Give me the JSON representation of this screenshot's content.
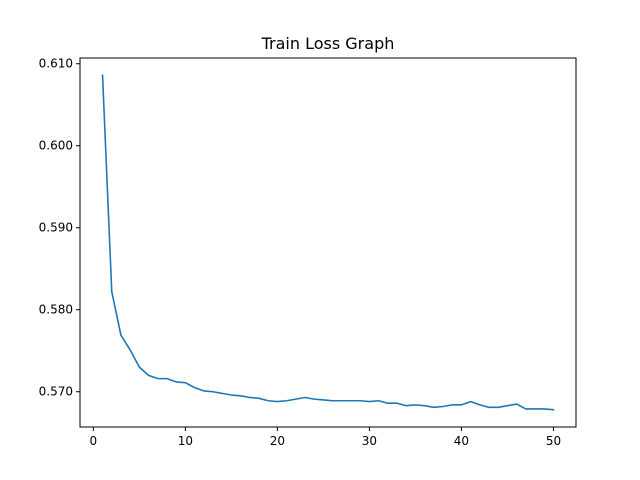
{
  "chart_data": {
    "type": "line",
    "title": "Train Loss Graph",
    "xlabel": "",
    "ylabel": "",
    "xlim": [
      -1.45,
      52.45
    ],
    "ylim": [
      0.5657,
      0.6107
    ],
    "xticks": [
      0,
      10,
      20,
      30,
      40,
      50
    ],
    "yticks": [
      0.57,
      0.58,
      0.59,
      0.6,
      0.61
    ],
    "ytick_labels": [
      "0.570",
      "0.580",
      "0.590",
      "0.600",
      "0.610"
    ],
    "grid": false,
    "legend": "none",
    "series": [
      {
        "color": "#1f77b4",
        "x": [
          1,
          2,
          3,
          4,
          5,
          6,
          7,
          8,
          9,
          10,
          11,
          12,
          13,
          14,
          15,
          16,
          17,
          18,
          19,
          20,
          21,
          22,
          23,
          24,
          25,
          26,
          27,
          28,
          29,
          30,
          31,
          32,
          33,
          34,
          35,
          36,
          37,
          38,
          39,
          40,
          41,
          42,
          43,
          44,
          45,
          46,
          47,
          48,
          49,
          50
        ],
        "values": [
          0.6086,
          0.5822,
          0.5769,
          0.5751,
          0.573,
          0.572,
          0.5716,
          0.5716,
          0.5712,
          0.5711,
          0.5705,
          0.5701,
          0.57,
          0.5698,
          0.5696,
          0.5695,
          0.5693,
          0.5692,
          0.5689,
          0.5688,
          0.5689,
          0.5691,
          0.5693,
          0.5691,
          0.569,
          0.5689,
          0.5689,
          0.5689,
          0.5689,
          0.5688,
          0.5689,
          0.5686,
          0.5686,
          0.5683,
          0.5684,
          0.5683,
          0.5681,
          0.5682,
          0.5684,
          0.5684,
          0.5688,
          0.5684,
          0.5681,
          0.5681,
          0.5683,
          0.5685,
          0.5679,
          0.5679,
          0.5679,
          0.5678
        ]
      }
    ]
  }
}
